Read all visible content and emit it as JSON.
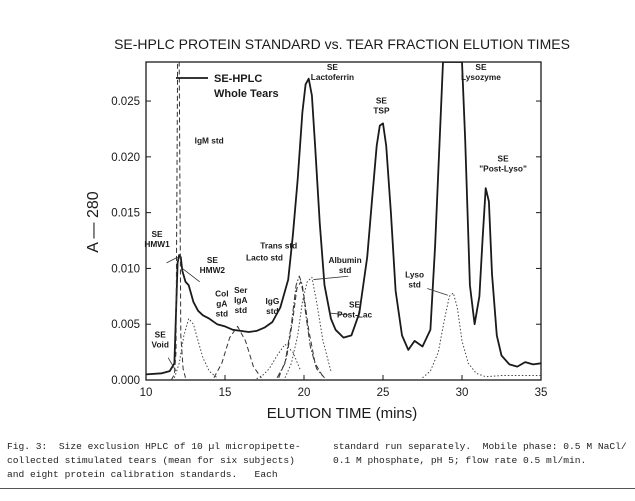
{
  "chart_data": {
    "type": "line",
    "title": "SE-HPLC PROTEIN STANDARD vs. TEAR FRACTION ELUTION TIMES",
    "xlabel": "ELUTION TIME (mins)",
    "ylabel": "A — 280",
    "xlim": [
      10,
      35
    ],
    "ylim": [
      0,
      0.0285
    ],
    "xticks": [
      10,
      15,
      20,
      25,
      30,
      35
    ],
    "xtick_labels": [
      "10",
      "15",
      "20",
      "25",
      "30",
      "35"
    ],
    "yticks": [
      0,
      0.005,
      0.01,
      0.015,
      0.02,
      0.025
    ],
    "ytick_labels": [
      "0.000",
      "0.005",
      "0.010",
      "0.015",
      "0.020",
      "0.025"
    ],
    "legend": {
      "position": "top-left",
      "entries": [
        {
          "label": "SE-HPLC",
          "label2": "Whole Tears",
          "style": "solid"
        }
      ]
    },
    "series": [
      {
        "name": "SE-HPLC Whole Tears",
        "style": "solid",
        "x": [
          10.0,
          11.0,
          11.5,
          11.8,
          12.0,
          12.1,
          12.2,
          12.3,
          12.5,
          12.7,
          13.0,
          13.3,
          13.6,
          14.0,
          14.5,
          15.0,
          15.5,
          16.0,
          16.5,
          17.0,
          17.5,
          18.0,
          18.5,
          19.0,
          19.3,
          19.6,
          19.9,
          20.1,
          20.3,
          20.5,
          20.7,
          21.0,
          21.3,
          21.7,
          22.0,
          22.5,
          23.0,
          23.5,
          24.0,
          24.3,
          24.6,
          24.8,
          25.0,
          25.2,
          25.5,
          25.8,
          26.2,
          26.6,
          27.0,
          27.5,
          28.0,
          28.3,
          28.6,
          28.8,
          29.0,
          29.2,
          29.5,
          29.8,
          30.0,
          30.2,
          30.5,
          30.8,
          31.1,
          31.3,
          31.5,
          31.7,
          31.9,
          32.2,
          32.5,
          33.0,
          33.5,
          34.0,
          34.5,
          35.0
        ],
        "y": [
          0.0005,
          0.0006,
          0.0008,
          0.0015,
          0.0105,
          0.0112,
          0.011,
          0.0098,
          0.0088,
          0.0085,
          0.007,
          0.0062,
          0.0058,
          0.0055,
          0.005,
          0.0048,
          0.0045,
          0.0044,
          0.0043,
          0.0044,
          0.0047,
          0.0052,
          0.0065,
          0.009,
          0.013,
          0.018,
          0.024,
          0.0265,
          0.027,
          0.0255,
          0.021,
          0.014,
          0.0085,
          0.0055,
          0.0045,
          0.0038,
          0.004,
          0.006,
          0.011,
          0.016,
          0.021,
          0.0228,
          0.023,
          0.021,
          0.015,
          0.008,
          0.004,
          0.0027,
          0.0035,
          0.003,
          0.0045,
          0.012,
          0.022,
          0.0285,
          0.0285,
          0.0285,
          0.0285,
          0.0285,
          0.0285,
          0.0215,
          0.0085,
          0.005,
          0.0075,
          0.0125,
          0.0172,
          0.016,
          0.0095,
          0.004,
          0.0022,
          0.0014,
          0.0012,
          0.0016,
          0.0014,
          0.0015
        ]
      },
      {
        "name": "IgM std",
        "style": "dashed",
        "x": [
          11.6,
          11.8,
          11.9,
          12.0,
          12.1,
          12.2,
          12.35,
          12.5
        ],
        "y": [
          0.0,
          0.0005,
          0.0025,
          0.0285,
          0.0285,
          0.004,
          0.001,
          0.0002
        ]
      },
      {
        "name": "Col gA std",
        "style": "dotted",
        "x": [
          11.8,
          12.1,
          12.4,
          12.7,
          13.0,
          13.3,
          13.6,
          14.0,
          14.5
        ],
        "y": [
          0.0002,
          0.0015,
          0.004,
          0.0055,
          0.005,
          0.0035,
          0.002,
          0.0008,
          0.0002
        ]
      },
      {
        "name": "Ser IgA std",
        "style": "dashed",
        "x": [
          14.3,
          14.8,
          15.3,
          15.8,
          16.3,
          16.8,
          17.3
        ],
        "y": [
          0.0002,
          0.0015,
          0.0038,
          0.0048,
          0.0035,
          0.0012,
          0.0002
        ]
      },
      {
        "name": "IgG std",
        "style": "dotted",
        "x": [
          16.8,
          17.3,
          17.8,
          18.3,
          18.8,
          19.3,
          19.8
        ],
        "y": [
          0.0,
          0.0003,
          0.001,
          0.0022,
          0.0032,
          0.0025,
          0.0008
        ]
      },
      {
        "name": "Trans std",
        "style": "dashdot",
        "x": [
          18.3,
          18.8,
          19.2,
          19.5,
          19.7,
          19.9,
          20.1,
          20.4,
          20.8,
          21.3
        ],
        "y": [
          0.0002,
          0.0015,
          0.005,
          0.0085,
          0.0093,
          0.0085,
          0.006,
          0.003,
          0.001,
          0.0002
        ]
      },
      {
        "name": "Lacto std",
        "style": "dashed",
        "x": [
          18.4,
          18.9,
          19.3,
          19.55,
          19.8,
          20.0,
          20.3,
          20.7,
          21.2
        ],
        "y": [
          0.0002,
          0.002,
          0.0055,
          0.0082,
          0.0088,
          0.0075,
          0.0045,
          0.0015,
          0.0003
        ]
      },
      {
        "name": "Albumin std",
        "style": "dotted",
        "x": [
          18.8,
          19.2,
          19.6,
          19.9,
          20.2,
          20.5,
          20.8,
          21.2,
          21.7
        ],
        "y": [
          0.0002,
          0.0015,
          0.004,
          0.007,
          0.0088,
          0.0092,
          0.007,
          0.0035,
          0.0008
        ]
      },
      {
        "name": "Lyso std",
        "style": "dotted",
        "x": [
          27.5,
          28.0,
          28.5,
          28.9,
          29.2,
          29.45,
          29.7,
          30.0,
          30.4,
          30.9,
          31.5,
          32.5,
          34.0,
          35.0
        ],
        "y": [
          0.0002,
          0.0008,
          0.0025,
          0.0055,
          0.0075,
          0.0078,
          0.0065,
          0.0035,
          0.0015,
          0.0006,
          0.0003,
          0.0004,
          0.0004,
          0.0004
        ]
      }
    ],
    "annotations": [
      {
        "lines": [
          "SE",
          "Lactoferrin"
        ],
        "x": 21.8,
        "y": 0.0278
      },
      {
        "lines": [
          "SE",
          "TSP"
        ],
        "x": 24.9,
        "y": 0.0248
      },
      {
        "lines": [
          "SE",
          "Lysozyme"
        ],
        "x": 31.2,
        "y": 0.0278
      },
      {
        "lines": [
          "SE",
          "\"Post-Lyso\""
        ],
        "x": 32.6,
        "y": 0.0196
      },
      {
        "lines": [
          "SE",
          "HMW1"
        ],
        "x": 10.7,
        "y": 0.0128
      },
      {
        "lines": [
          "SE",
          "HMW2"
        ],
        "x": 14.2,
        "y": 0.0105
      },
      {
        "lines": [
          "SE",
          "Void"
        ],
        "x": 10.9,
        "y": 0.0038
      },
      {
        "lines": [
          "IgM std"
        ],
        "x": 14.0,
        "y": 0.0212
      },
      {
        "lines": [
          "Col",
          "gA",
          "std"
        ],
        "x": 14.8,
        "y": 0.0075
      },
      {
        "lines": [
          "Ser",
          "IgA",
          "std"
        ],
        "x": 16.0,
        "y": 0.0078
      },
      {
        "lines": [
          "IgG",
          "std"
        ],
        "x": 18.0,
        "y": 0.0068
      },
      {
        "lines": [
          "Trans std"
        ],
        "x": 18.4,
        "y": 0.0118
      },
      {
        "lines": [
          "Lacto std"
        ],
        "x": 17.5,
        "y": 0.0107
      },
      {
        "lines": [
          "Albumin",
          "std"
        ],
        "x": 22.6,
        "y": 0.0105
      },
      {
        "lines": [
          "SE",
          "Post-Lac"
        ],
        "x": 23.2,
        "y": 0.0065
      },
      {
        "lines": [
          "Lyso",
          "std"
        ],
        "x": 27.0,
        "y": 0.0092
      }
    ],
    "grid": false
  },
  "caption": {
    "left": "Fig. 3:  Size exclusion HPLC of 10 µl micropipette-\ncollected stimulated tears (mean for six subjects)\nand eight protein calibration standards.   Each",
    "right": "standard run separately.  Mobile phase: 0.5 M NaCl/\n0.1 M phosphate, pH 5; flow rate 0.5 ml/min."
  }
}
